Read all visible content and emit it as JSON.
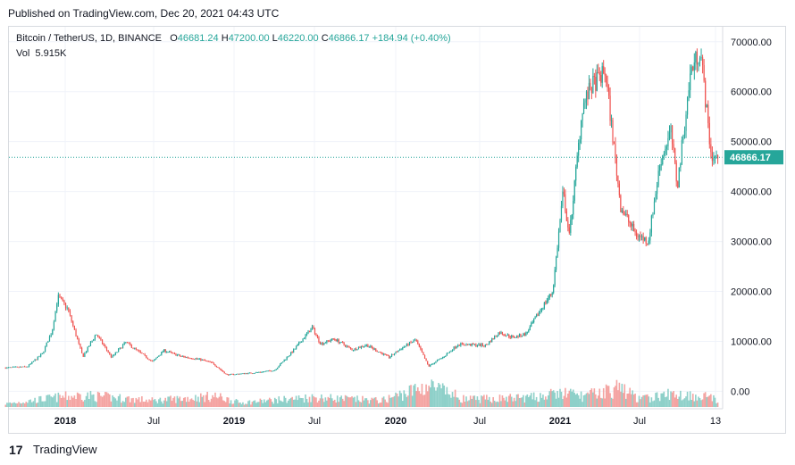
{
  "header": {
    "published": "Published on TradingView.com, Dec 20, 2021 04:43 UTC"
  },
  "legend": {
    "symbol": "Bitcoin / TetherUS, 1D, BINANCE",
    "open_key": "O",
    "open": "46681.24",
    "high_key": "H",
    "high": "47200.00",
    "low_key": "L",
    "low": "46220.00",
    "close_key": "C",
    "close": "46866.17",
    "change": "+184.94 (+0.40%)",
    "vol_key": "Vol",
    "vol": "5.915K"
  },
  "footer": {
    "brand": "TradingView",
    "logo_text": "17"
  },
  "colors": {
    "up": "#26a69a",
    "down": "#ef5350",
    "up_vol": "#8ed0c9",
    "down_vol": "#f4a3a1",
    "grid": "#f0f3fa",
    "price_tag": "#26a69a"
  },
  "chart_data": {
    "type": "line",
    "title": "Bitcoin / TetherUS, 1D, BINANCE",
    "y_scale": "linear",
    "ylim": [
      -3500,
      73000
    ],
    "y_ticks": [
      "70000.00",
      "60000.00",
      "50000.00",
      "40000.00",
      "30000.00",
      "20000.00",
      "10000.00",
      "0.00"
    ],
    "y_tick_values": [
      70000,
      60000,
      50000,
      40000,
      30000,
      20000,
      10000,
      0
    ],
    "x_ticks": [
      "2018",
      "Jul",
      "2019",
      "Jul",
      "2020",
      "Jul",
      "2021",
      "Jul",
      "13"
    ],
    "x_tick_dates": [
      "2018-01-01",
      "2018-07-01",
      "2019-01-01",
      "2019-07-01",
      "2020-01-01",
      "2020-07-01",
      "2021-01-01",
      "2021-07-01",
      "2021-12-13"
    ],
    "x_tick_bold": [
      true,
      false,
      true,
      false,
      true,
      false,
      true,
      false,
      false
    ],
    "last_price": 46866.17,
    "last_price_label": "46866.17",
    "grid": true,
    "series": [
      {
        "x": [
          "2017-09-01",
          "2017-10-15",
          "2017-11-15",
          "2017-12-05",
          "2017-12-17",
          "2018-01-06",
          "2018-02-06",
          "2018-03-05",
          "2018-04-06",
          "2018-05-05",
          "2018-06-29",
          "2018-07-24",
          "2018-09-01",
          "2018-10-15",
          "2018-11-14",
          "2018-12-15",
          "2019-02-15",
          "2019-04-02",
          "2019-05-15",
          "2019-06-26",
          "2019-07-15",
          "2019-08-15",
          "2019-09-25",
          "2019-10-26",
          "2019-12-17",
          "2020-01-15",
          "2020-02-13",
          "2020-03-12",
          "2020-04-15",
          "2020-05-15",
          "2020-06-15",
          "2020-07-15",
          "2020-08-15",
          "2020-09-15",
          "2020-10-15",
          "2020-11-15",
          "2020-12-15",
          "2021-01-08",
          "2021-01-22",
          "2021-02-21",
          "2021-03-13",
          "2021-04-14",
          "2021-05-19",
          "2021-06-22",
          "2021-07-20",
          "2021-08-15",
          "2021-09-07",
          "2021-09-21",
          "2021-10-20",
          "2021-11-10",
          "2021-11-26",
          "2021-12-04",
          "2021-12-19"
        ],
        "values": [
          4700,
          4900,
          7500,
          12000,
          19000,
          16500,
          6900,
          11500,
          6800,
          9800,
          5900,
          8200,
          7000,
          6400,
          5600,
          3300,
          3700,
          4200,
          8200,
          12800,
          9500,
          10500,
          8300,
          9300,
          6800,
          8700,
          10300,
          5000,
          7000,
          9400,
          9300,
          9200,
          11800,
          10800,
          11500,
          16000,
          20000,
          40000,
          31000,
          57000,
          61000,
          64000,
          37000,
          31500,
          30000,
          46000,
          52000,
          41000,
          64000,
          68500,
          54000,
          47000,
          46866
        ]
      }
    ],
    "volume": {
      "unit": "BTC",
      "x": [
        "2017-09-01",
        "2017-12-15",
        "2018-02-06",
        "2018-07-01",
        "2018-11-20",
        "2019-01-15",
        "2019-06-26",
        "2019-12-01",
        "2020-03-12",
        "2020-06-01",
        "2020-11-01",
        "2021-01-11",
        "2021-02-25",
        "2021-05-19",
        "2021-07-01",
        "2021-09-07",
        "2021-12-04",
        "2021-12-19"
      ],
      "values": [
        0.15,
        0.45,
        0.55,
        0.3,
        0.5,
        0.2,
        0.45,
        0.3,
        1.0,
        0.35,
        0.45,
        0.65,
        0.5,
        0.9,
        0.35,
        0.6,
        0.5,
        0.12
      ]
    }
  }
}
